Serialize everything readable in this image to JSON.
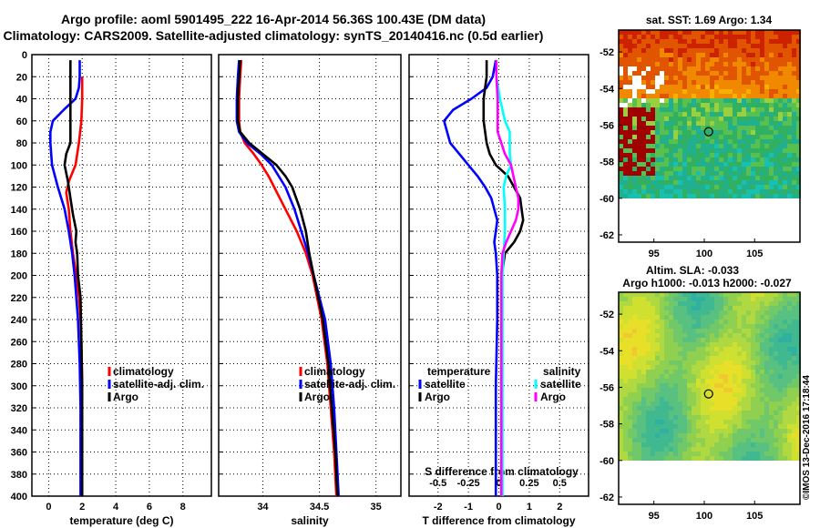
{
  "title": {
    "line1": "Argo profile: aoml 5901495_222 16-Apr-2014 56.36S 100.43E (DM data)",
    "line2": "Climatology: CARS2009. Satellite-adjusted climatology: synTS_20140416.nc (0.5d earlier)"
  },
  "depth_ticks": [
    "0",
    "20",
    "40",
    "60",
    "80",
    "100",
    "120",
    "140",
    "160",
    "180",
    "200",
    "220",
    "240",
    "260",
    "280",
    "300",
    "320",
    "340",
    "360",
    "380",
    "400"
  ],
  "colors": {
    "climatology": "#ff0000",
    "satellite": "#0000ff",
    "argo": "#000000",
    "sal_satellite": "#00ffff",
    "sal_argo": "#ff00ff"
  },
  "watermark": "©IMOS 13-Dec-2016 17:18:44",
  "chart_data": [
    {
      "type": "line",
      "id": "temperature",
      "xlabel": "temperature (deg C)",
      "ylabel": "depth",
      "xlim": [
        -1,
        9.7
      ],
      "ylim": [
        400,
        0
      ],
      "x_ticks": [
        "0",
        "2",
        "4",
        "6",
        "8"
      ],
      "x_tick_values": [
        0,
        2,
        4,
        6,
        8
      ],
      "legend": [
        "climatology",
        "satellite-adj. clim.",
        "Argo"
      ],
      "series": [
        {
          "name": "climatology",
          "color": "#ff0000",
          "depth": [
            20,
            40,
            60,
            80,
            100,
            115,
            125,
            140,
            160,
            180,
            200,
            220,
            240,
            260,
            300,
            340,
            380,
            400
          ],
          "values": [
            2.0,
            2.0,
            1.95,
            1.8,
            1.6,
            1.2,
            1.05,
            1.2,
            1.3,
            1.45,
            1.65,
            1.8,
            1.9,
            1.95,
            2.0,
            2.0,
            2.0,
            2.0
          ]
        },
        {
          "name": "satellite-adj. clim.",
          "color": "#0000ff",
          "depth": [
            5,
            20,
            30,
            40,
            50,
            60,
            70,
            80,
            100,
            120,
            140,
            160,
            180,
            200,
            240,
            280,
            320,
            360,
            400
          ],
          "values": [
            1.85,
            1.85,
            1.8,
            1.6,
            0.9,
            0.25,
            0.1,
            0.1,
            0.2,
            0.55,
            0.95,
            1.2,
            1.4,
            1.55,
            1.75,
            1.85,
            1.9,
            1.9,
            1.9
          ]
        },
        {
          "name": "Argo",
          "color": "#000000",
          "depth": [
            5,
            20,
            40,
            60,
            80,
            90,
            100,
            115,
            130,
            145,
            160,
            170,
            180,
            200,
            220,
            260,
            300,
            350,
            400
          ],
          "values": [
            1.3,
            1.3,
            1.3,
            1.3,
            1.3,
            1.05,
            0.95,
            1.15,
            1.3,
            1.45,
            1.65,
            1.6,
            1.7,
            1.75,
            1.9,
            1.95,
            2.0,
            2.0,
            2.0
          ]
        }
      ]
    },
    {
      "type": "line",
      "id": "salinity",
      "xlabel": "salinity",
      "ylabel": "depth",
      "xlim": [
        33.61,
        35.22
      ],
      "ylim": [
        400,
        0
      ],
      "x_ticks": [
        "34",
        "34.5",
        "35"
      ],
      "x_tick_values": [
        34,
        34.5,
        35
      ],
      "legend": [
        "climatology",
        "satellite-adj. clim.",
        "Argo"
      ],
      "series": [
        {
          "name": "climatology",
          "color": "#ff0000",
          "depth": [
            5,
            20,
            40,
            60,
            70,
            80,
            90,
            100,
            110,
            120,
            140,
            160,
            180,
            200,
            240,
            280,
            320,
            360,
            400
          ],
          "values": [
            33.81,
            33.8,
            33.79,
            33.79,
            33.8,
            33.84,
            33.92,
            33.99,
            34.05,
            34.1,
            34.2,
            34.3,
            34.38,
            34.44,
            34.52,
            34.57,
            34.6,
            34.63,
            34.65
          ]
        },
        {
          "name": "satellite-adj. clim.",
          "color": "#0000ff",
          "depth": [
            5,
            20,
            40,
            60,
            70,
            80,
            90,
            100,
            120,
            140,
            160,
            180,
            200,
            240,
            280,
            320,
            360,
            400
          ],
          "values": [
            33.79,
            33.78,
            33.77,
            33.77,
            33.79,
            33.86,
            33.98,
            34.08,
            34.2,
            34.28,
            34.34,
            34.4,
            34.45,
            34.55,
            34.6,
            34.63,
            34.65,
            34.67
          ]
        },
        {
          "name": "Argo",
          "color": "#000000",
          "depth": [
            5,
            20,
            40,
            60,
            70,
            80,
            90,
            100,
            110,
            120,
            140,
            160,
            180,
            200,
            240,
            280,
            320,
            360,
            400
          ],
          "values": [
            33.8,
            33.79,
            33.78,
            33.78,
            33.8,
            33.88,
            34.0,
            34.12,
            34.2,
            34.26,
            34.33,
            34.38,
            34.41,
            34.45,
            34.53,
            34.58,
            34.61,
            34.64,
            34.66
          ]
        }
      ]
    },
    {
      "type": "line",
      "id": "difference",
      "xlabel": "T difference from climatology",
      "top_xlabel": "S difference from climatology",
      "xlim": [
        -2.95,
        2.95
      ],
      "ylim": [
        400,
        0
      ],
      "x_ticks": [
        "-2",
        "-1",
        "0",
        "1",
        "2"
      ],
      "x_tick_values": [
        -2,
        -1,
        0,
        1,
        2
      ],
      "top_ticks": [
        "-0.5",
        "-0.25",
        "0",
        "0.25",
        "0.5"
      ],
      "top_tick_values": [
        -0.5,
        -0.25,
        0,
        0.25,
        0.5
      ],
      "legend_temperature_title": "temperature",
      "legend_salinity_title": "salinity",
      "legend_temperature": [
        "satellite",
        "Argo"
      ],
      "legend_salinity": [
        "satellite",
        "Argo"
      ],
      "series": [
        {
          "name": "T satellite",
          "color": "#0000ff",
          "depth": [
            5,
            20,
            30,
            40,
            50,
            60,
            70,
            80,
            90,
            100,
            110,
            120,
            130,
            140,
            150,
            160,
            170,
            180,
            200,
            240,
            300,
            350,
            400
          ],
          "values": [
            -0.1,
            -0.2,
            -0.4,
            -0.9,
            -1.5,
            -1.8,
            -1.7,
            -1.6,
            -1.3,
            -1.0,
            -0.7,
            -0.45,
            -0.25,
            -0.15,
            -0.05,
            -0.1,
            -0.15,
            -0.1,
            -0.05,
            -0.05,
            -0.1,
            -0.1,
            -0.1
          ]
        },
        {
          "name": "T Argo",
          "color": "#000000",
          "depth": [
            5,
            20,
            40,
            60,
            80,
            90,
            100,
            110,
            120,
            130,
            140,
            150,
            160,
            170,
            180,
            200,
            240,
            300,
            350,
            400
          ],
          "values": [
            -0.4,
            -0.4,
            -0.5,
            -0.5,
            -0.4,
            -0.3,
            -0.1,
            0.3,
            0.5,
            0.7,
            0.75,
            0.8,
            0.7,
            0.5,
            0.2,
            0.1,
            0.1,
            0.1,
            0.1,
            0.1
          ]
        },
        {
          "name": "S satellite",
          "color": "#00ffff",
          "depth": [
            5,
            20,
            40,
            60,
            70,
            80,
            90,
            100,
            110,
            120,
            140,
            160,
            180,
            200,
            240,
            300,
            350,
            400
          ],
          "values": [
            -0.02,
            -0.02,
            0.01,
            0.05,
            0.09,
            0.09,
            0.09,
            0.1,
            0.06,
            0.04,
            0.05,
            0.05,
            0.04,
            0.03,
            0.03,
            0.03,
            0.03,
            0.03
          ]
        },
        {
          "name": "S Argo",
          "color": "#ff00ff",
          "depth": [
            5,
            20,
            40,
            60,
            70,
            80,
            90,
            100,
            110,
            120,
            130,
            140,
            150,
            160,
            170,
            180,
            200,
            240,
            300,
            350,
            400
          ],
          "values": [
            -0.02,
            -0.02,
            -0.01,
            -0.01,
            -0.01,
            0.02,
            0.05,
            0.1,
            0.12,
            0.14,
            0.16,
            0.16,
            0.14,
            0.1,
            0.06,
            0.03,
            0.02,
            0.02,
            0.02,
            0.02,
            0.02
          ]
        }
      ]
    },
    {
      "type": "heatmap",
      "id": "sst_map",
      "title": "sat. SST: 1.69 Argo: 1.34",
      "x_ticks": [
        "95",
        "100",
        "105"
      ],
      "x_tick_values": [
        95,
        100,
        105
      ],
      "y_ticks": [
        "-52",
        "-54",
        "-56",
        "-58",
        "-60",
        "-62"
      ],
      "y_tick_values": [
        -52,
        -54,
        -56,
        -58,
        -60,
        -62
      ],
      "xlim": [
        91.5,
        109.5
      ],
      "ylim": [
        -62.4,
        -50.8
      ],
      "data_top_lat": -60,
      "argo_marker": {
        "lon": 100.43,
        "lat": -56.36
      },
      "palette": [
        "#b40000",
        "#cc2200",
        "#e25500",
        "#f08800",
        "#f7b000",
        "#f5d020",
        "#d8e040",
        "#9ad040",
        "#58c050",
        "#30b060",
        "#20b090",
        "#18c0b0"
      ]
    },
    {
      "type": "heatmap",
      "id": "sla_map",
      "title": "Altim. SLA: -0.033",
      "subtitle": "Argo h1000: -0.013 h2000: -0.027",
      "x_ticks": [
        "95",
        "100",
        "105"
      ],
      "x_tick_values": [
        95,
        100,
        105
      ],
      "y_ticks": [
        "-52",
        "-54",
        "-56",
        "-58",
        "-60",
        "-62"
      ],
      "y_tick_values": [
        -52,
        -54,
        -56,
        -58,
        -60,
        -62
      ],
      "xlim": [
        91.5,
        109.5
      ],
      "ylim": [
        -62.4,
        -50.8
      ],
      "data_top_lat": -60,
      "argo_marker": {
        "lon": 100.43,
        "lat": -56.36
      },
      "palette": [
        "#30b0a0",
        "#40b890",
        "#58c080",
        "#70c868",
        "#90d050",
        "#b0d840",
        "#d0e030",
        "#e8e028",
        "#f0c830"
      ]
    }
  ]
}
